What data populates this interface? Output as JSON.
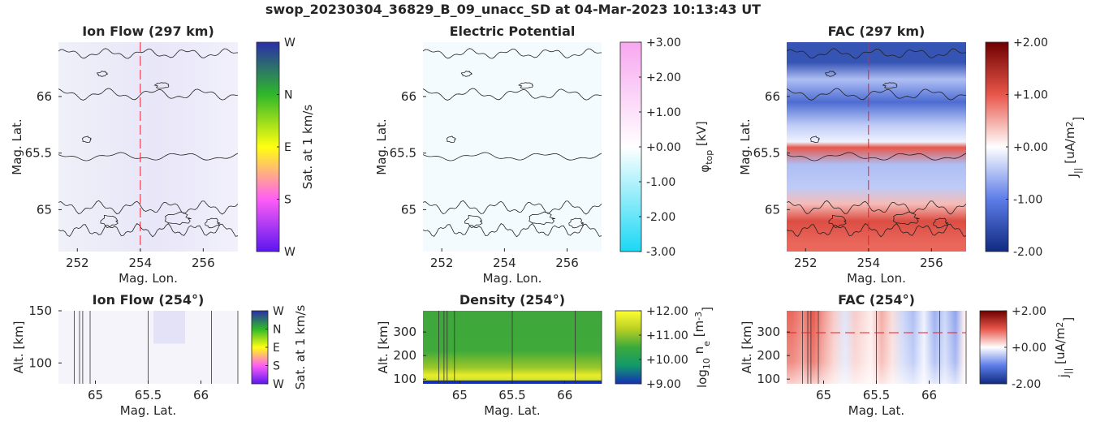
{
  "suptitle": "swop_20230304_36829_B_09_unacc_SD at 04-Mar-2023 10:13:43 UT",
  "colors": {
    "contour": "#222222",
    "cut_line": "#e8202a",
    "axis": "#262626"
  },
  "chart_data": [
    {
      "id": "ion-flow-map",
      "type": "heatmap",
      "title": "Ion Flow (297 km)",
      "xlabel": "Mag. Lon.",
      "ylabel": "Mag. Lat.",
      "xlim": [
        251.4,
        257.1
      ],
      "ylim": [
        64.63,
        66.48
      ],
      "xticks": [
        252,
        254,
        256
      ],
      "xtick_labels": [
        "252",
        "254",
        "256"
      ],
      "yticks": [
        65,
        65.5,
        66
      ],
      "ytick_labels": [
        "65",
        "65.5",
        "66"
      ],
      "cut_longitude": 254,
      "colorbar": {
        "label": "Sat. at 1 km/s",
        "colormap": "direction-wheel",
        "ticks": [
          0,
          0.25,
          0.5,
          0.75,
          1
        ],
        "tick_labels": [
          "W",
          "S",
          "E",
          "N",
          "W"
        ],
        "stops": [
          "#5b16f0",
          "#ff5ef5",
          "#ffff10",
          "#2fb82a",
          "#2a2ea8"
        ]
      },
      "field": "ion_flow_faint"
    },
    {
      "id": "potential-map",
      "type": "heatmap",
      "title": "Electric Potential",
      "xlabel": "Mag. Lon.",
      "ylabel": "Mag. Lat.",
      "xlim": [
        251.4,
        257.1
      ],
      "ylim": [
        64.63,
        66.48
      ],
      "xticks": [
        252,
        254,
        256
      ],
      "xtick_labels": [
        "252",
        "254",
        "256"
      ],
      "yticks": [
        65,
        65.5,
        66
      ],
      "ytick_labels": [
        "65",
        "65.5",
        "66"
      ],
      "colorbar": {
        "label_main": "φ",
        "label_sub": "top",
        "label_unit": " [kV]",
        "colormap": "cyan-white-magenta",
        "ticks": [
          -3,
          -2,
          -1,
          0,
          1,
          2,
          3
        ],
        "tick_labels": [
          "-3.00",
          "-2.00",
          "-1.00",
          "+0.00",
          "+1.00",
          "+2.00",
          "+3.00"
        ],
        "stops": [
          "#1ad8f5",
          "#ffffff",
          "#f7a7f0"
        ]
      },
      "field": "potential_near_zero"
    },
    {
      "id": "fac-map",
      "type": "heatmap",
      "title": "FAC (297 km)",
      "xlabel": "Mag. Lon.",
      "ylabel": "Mag. Lat.",
      "xlim": [
        251.4,
        257.1
      ],
      "ylim": [
        64.63,
        66.48
      ],
      "xticks": [
        252,
        254,
        256
      ],
      "xtick_labels": [
        "252",
        "254",
        "256"
      ],
      "yticks": [
        65,
        65.5,
        66
      ],
      "ytick_labels": [
        "65",
        "65.5",
        "66"
      ],
      "cut_longitude": 254,
      "colorbar": {
        "label_main": "J",
        "label_sub": "||",
        "label_unit": " [uA/m",
        "label_sup": "2",
        "label_end": "]",
        "colormap": "blue-white-red",
        "ticks": [
          -2,
          -1,
          0,
          1,
          2
        ],
        "tick_labels": [
          "-2.00",
          "-1.00",
          "+0.00",
          "+1.00",
          "+2.00"
        ],
        "stops": [
          "#0f2a80",
          "#5d7de8",
          "#ffffff",
          "#e8564a",
          "#6e0000"
        ]
      },
      "latitude_bands": [
        {
          "lat": 66.3,
          "value": -1.5
        },
        {
          "lat": 66.15,
          "value": -0.5
        },
        {
          "lat": 65.95,
          "value": -1.2
        },
        {
          "lat": 65.75,
          "value": -0.4
        },
        {
          "lat": 65.6,
          "value": -0.1
        },
        {
          "lat": 65.55,
          "value": 1.0
        },
        {
          "lat": 65.4,
          "value": -0.5
        },
        {
          "lat": 65.2,
          "value": -0.4
        },
        {
          "lat": 65.05,
          "value": 0.4
        },
        {
          "lat": 64.9,
          "value": 1.1
        },
        {
          "lat": 64.7,
          "value": 0.9
        }
      ]
    },
    {
      "id": "ion-flow-cut",
      "type": "heatmap",
      "title": "Ion Flow (254°)",
      "xlabel": "Mag. Lat.",
      "ylabel": "Alt. [km]",
      "xlim": [
        64.65,
        66.35
      ],
      "ylim": [
        80,
        150
      ],
      "xticks": [
        65,
        65.5,
        66
      ],
      "xtick_labels": [
        "65",
        "65.5",
        "66"
      ],
      "yticks": [
        100,
        150
      ],
      "ytick_labels": [
        "100",
        "150"
      ],
      "colorbar": {
        "label": "Sat. at 1 km/s",
        "colormap": "direction-wheel",
        "ticks": [
          0,
          0.25,
          0.5,
          0.75,
          1
        ],
        "tick_labels": [
          "W",
          "S",
          "E",
          "N",
          "W"
        ],
        "stops": [
          "#5b16f0",
          "#ff5ef5",
          "#ffff10",
          "#2fb82a",
          "#2a2ea8"
        ]
      },
      "crossing_lats": [
        64.8,
        64.85,
        64.88,
        64.95,
        65.5,
        66.1,
        66.35
      ]
    },
    {
      "id": "density-cut",
      "type": "heatmap",
      "title": "Density (254°)",
      "xlabel": "Mag. Lat.",
      "ylabel": "Alt. [km]",
      "xlim": [
        64.65,
        66.35
      ],
      "ylim": [
        80,
        390
      ],
      "xticks": [
        65,
        65.5,
        66
      ],
      "xtick_labels": [
        "65",
        "65.5",
        "66"
      ],
      "yticks": [
        100,
        200,
        300
      ],
      "ytick_labels": [
        "100",
        "200",
        "300"
      ],
      "colorbar": {
        "label_main": "log",
        "label_sub": "10",
        "label_mid": " n",
        "label_sub2": "e",
        "label_unit": " [m",
        "label_sup": "-3",
        "label_end": "]",
        "colormap": "blue-green-yellow",
        "ticks": [
          9,
          10,
          11,
          12
        ],
        "tick_labels": [
          "+9.00",
          "+10.00",
          "+11.00",
          "+12.00"
        ],
        "stops": [
          "#1530b8",
          "#129a6a",
          "#3caa3c",
          "#b9cf22",
          "#ffff33"
        ]
      },
      "crossing_lats": [
        64.8,
        64.85,
        64.88,
        64.95,
        65.5,
        66.1,
        66.35
      ]
    },
    {
      "id": "fac-cut",
      "type": "heatmap",
      "title": "FAC (254°)",
      "xlabel": "Mag. Lat.",
      "ylabel": "Alt. [km]",
      "xlim": [
        64.65,
        66.35
      ],
      "ylim": [
        80,
        390
      ],
      "xticks": [
        65,
        65.5,
        66
      ],
      "xtick_labels": [
        "65",
        "65.5",
        "66"
      ],
      "yticks": [
        100,
        200,
        300
      ],
      "ytick_labels": [
        "100",
        "200",
        "300"
      ],
      "reference_altitude": 297,
      "colorbar": {
        "label_main": "j",
        "label_sub": "||",
        "label_unit": " [uA/m",
        "label_sup": "2",
        "label_end": "]",
        "colormap": "blue-white-red",
        "ticks": [
          -2,
          0,
          2
        ],
        "tick_labels": [
          "-2.00",
          "+0.00",
          "+2.00"
        ],
        "stops": [
          "#0f2a80",
          "#5d7de8",
          "#ffffff",
          "#e8564a",
          "#6e0000"
        ]
      },
      "latitude_profile": [
        {
          "lat": 64.7,
          "value": 0.9
        },
        {
          "lat": 64.8,
          "value": 0.7
        },
        {
          "lat": 64.9,
          "value": 1.0
        },
        {
          "lat": 65.0,
          "value": 0.6
        },
        {
          "lat": 65.1,
          "value": 0.3
        },
        {
          "lat": 65.2,
          "value": -0.2
        },
        {
          "lat": 65.3,
          "value": 0.3
        },
        {
          "lat": 65.45,
          "value": 0.1
        },
        {
          "lat": 65.55,
          "value": 0.5
        },
        {
          "lat": 65.65,
          "value": 0.2
        },
        {
          "lat": 65.75,
          "value": -0.3
        },
        {
          "lat": 65.85,
          "value": -0.5
        },
        {
          "lat": 65.95,
          "value": -0.1
        },
        {
          "lat": 66.05,
          "value": -0.6
        },
        {
          "lat": 66.15,
          "value": -0.3
        },
        {
          "lat": 66.25,
          "value": -0.7
        },
        {
          "lat": 66.33,
          "value": 0.1
        }
      ],
      "crossing_lats": [
        64.8,
        64.85,
        64.88,
        64.95,
        65.5,
        66.1,
        66.35
      ]
    }
  ]
}
